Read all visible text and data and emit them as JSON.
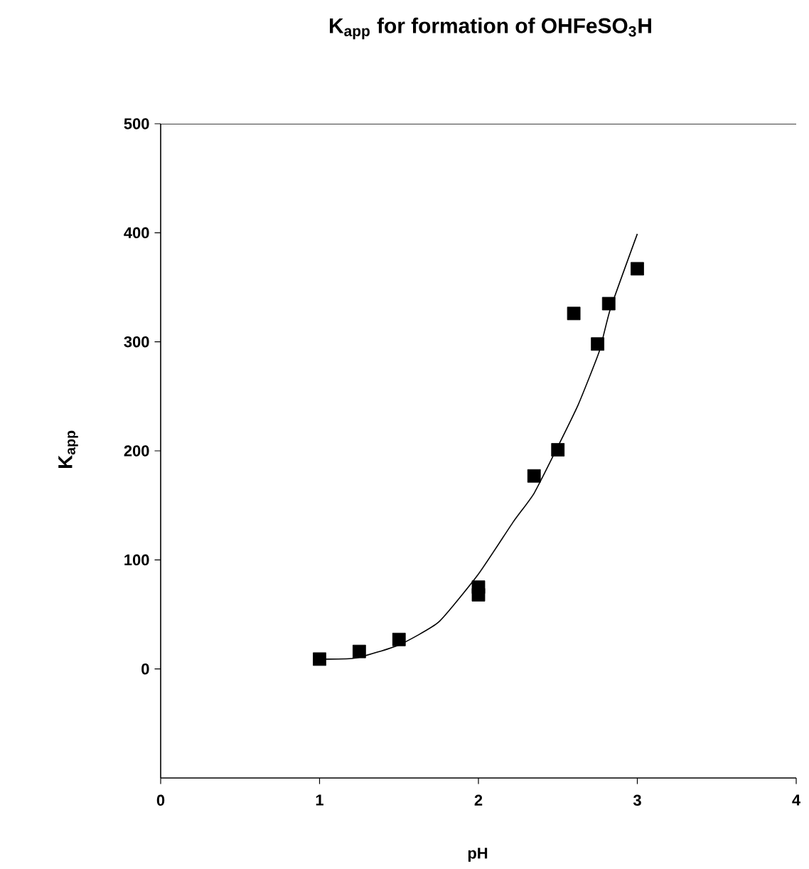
{
  "chart_data": {
    "type": "scatter",
    "title": "K$_{app}$  for formation of OHFeSO$_{3}$H",
    "xlabel": "pH",
    "ylabel": "K$_{app}$",
    "xlim": [
      0,
      4
    ],
    "ylim": [
      -100,
      500
    ],
    "xticks": [
      0,
      1,
      2,
      3,
      4
    ],
    "yticks": [
      0,
      100,
      200,
      300,
      400,
      500
    ],
    "grid": false,
    "series": [
      {
        "marker": "square",
        "color": "#000000",
        "x": [
          1.0,
          1.25,
          1.5,
          2.0,
          2.0,
          2.35,
          2.5,
          2.6,
          2.75,
          2.82,
          3.0
        ],
        "values": [
          9,
          16,
          27,
          75,
          68,
          177,
          201,
          326,
          298,
          335,
          367
        ]
      },
      {
        "type": "line",
        "marker": "none",
        "line_style": "solid",
        "color": "#000000",
        "x": [
          1.03,
          1.23,
          1.5,
          1.75,
          2.0,
          2.22,
          2.35,
          2.5,
          2.63,
          2.76,
          2.83,
          3.0
        ],
        "values": [
          9,
          10,
          22,
          43,
          87,
          135,
          161,
          204,
          243,
          291,
          330,
          399
        ]
      }
    ]
  }
}
